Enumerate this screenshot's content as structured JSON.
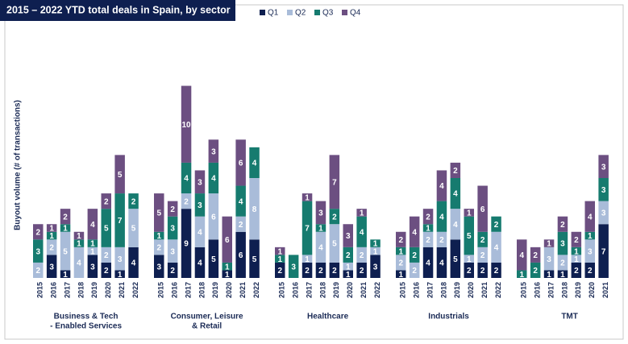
{
  "chart_data": {
    "type": "grouped-stacked-bar",
    "title": "2015 – 2022 YTD total deals in Spain, by sector",
    "y_label": "Buyout volume (# of transactions)",
    "ylim": [
      0,
      26
    ],
    "groups": [
      {
        "name": [
          "Business & Tech",
          "- Enabled Services"
        ],
        "categories": [
          "2015",
          "2016",
          "2017",
          "2018",
          "2019",
          "2020",
          "2021",
          "2022"
        ]
      },
      {
        "name": [
          "Consumer, Leisure",
          "& Retail"
        ],
        "categories": [
          "2015",
          "2016",
          "2017",
          "2018",
          "2019",
          "2020",
          "2021",
          "2022"
        ]
      },
      {
        "name": [
          "Healthcare"
        ],
        "categories": [
          "2015",
          "2016",
          "2017",
          "2018",
          "2019",
          "2020",
          "2021",
          "2022"
        ]
      },
      {
        "name": [
          "Industrials"
        ],
        "categories": [
          "2015",
          "2016",
          "2017",
          "2018",
          "2019",
          "2020",
          "2021",
          "2022"
        ]
      },
      {
        "name": [
          "TMT"
        ],
        "categories": [
          "2015",
          "2016",
          "2017",
          "2018",
          "2019",
          "2020",
          "2021"
        ]
      }
    ],
    "series": [
      {
        "name": "Q1",
        "color": "#0e1f50",
        "values": [
          [
            0,
            3,
            1,
            0,
            3,
            2,
            1,
            4
          ],
          [
            3,
            2,
            9,
            4,
            5,
            1,
            6,
            5
          ],
          [
            2,
            0,
            2,
            2,
            2,
            1,
            2,
            3
          ],
          [
            1,
            0,
            4,
            4,
            5,
            2,
            2,
            2
          ],
          [
            0,
            0,
            1,
            1,
            2,
            2,
            7
          ]
        ]
      },
      {
        "name": "Q2",
        "color": "#a9bcd9",
        "values": [
          [
            2,
            2,
            5,
            4,
            1,
            2,
            3,
            5
          ],
          [
            2,
            3,
            2,
            4,
            6,
            0,
            2,
            8
          ],
          [
            0,
            0,
            1,
            4,
            5,
            1,
            2,
            1
          ],
          [
            2,
            2,
            2,
            2,
            4,
            1,
            2,
            4
          ],
          [
            0,
            0,
            3,
            2,
            1,
            3,
            3
          ]
        ]
      },
      {
        "name": "Q3",
        "color": "#167b6f",
        "values": [
          [
            3,
            1,
            1,
            1,
            1,
            5,
            7,
            2
          ],
          [
            1,
            3,
            4,
            3,
            4,
            1,
            4,
            4
          ],
          [
            1,
            3,
            7,
            1,
            2,
            2,
            4,
            1
          ],
          [
            1,
            2,
            1,
            4,
            4,
            5,
            2,
            2
          ],
          [
            1,
            2,
            0,
            3,
            1,
            1,
            3
          ]
        ]
      },
      {
        "name": "Q4",
        "color": "#6c4f81",
        "values": [
          [
            2,
            1,
            2,
            1,
            4,
            2,
            5,
            0
          ],
          [
            5,
            2,
            10,
            3,
            3,
            6,
            6,
            0
          ],
          [
            1,
            0,
            1,
            3,
            7,
            3,
            1,
            0
          ],
          [
            2,
            4,
            2,
            4,
            2,
            1,
            6,
            0
          ],
          [
            4,
            2,
            1,
            2,
            2,
            4,
            3
          ]
        ]
      }
    ]
  }
}
